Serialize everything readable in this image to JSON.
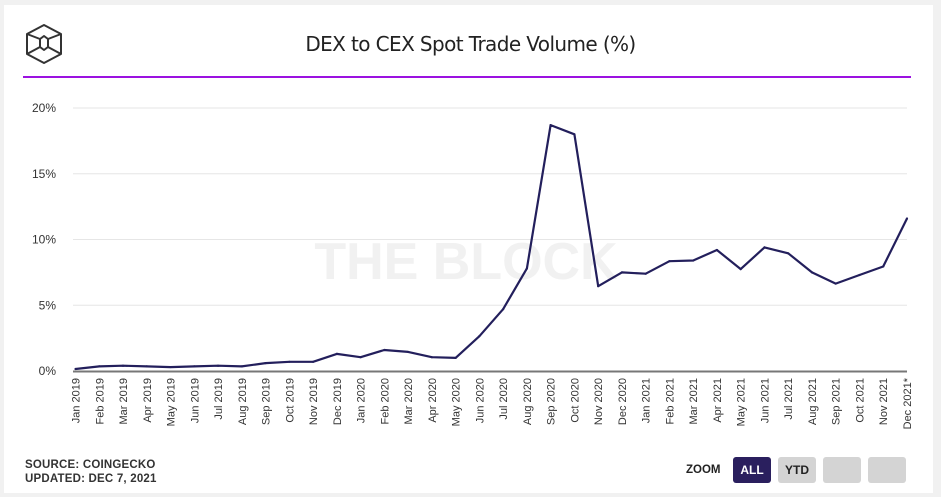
{
  "header": {
    "logo": "the-block-cube-logo",
    "title": "DEX to CEX Spot Trade Volume (%)"
  },
  "watermark": "THE BLOCK",
  "footer": {
    "source": "SOURCE: COINGECKO",
    "updated": "UPDATED: DEC 7, 2021"
  },
  "zoom": {
    "label": "ZOOM",
    "buttons": [
      {
        "label": "ALL",
        "active": true
      },
      {
        "label": "YTD",
        "active": false
      },
      {
        "label": "",
        "active": false
      },
      {
        "label": "",
        "active": false
      }
    ]
  },
  "colors": {
    "line": "#231f5c",
    "accent_rule": "#9b12e0",
    "grid": "#e6e6e6",
    "axis": "#777777",
    "watermark": "#f1f1f1"
  },
  "chart_data": {
    "type": "line",
    "title": "DEX to CEX Spot Trade Volume (%)",
    "xlabel": "",
    "ylabel": "",
    "ylim": [
      0,
      20
    ],
    "yticks": [
      0,
      5,
      10,
      15,
      20
    ],
    "ytick_labels": [
      "0%",
      "5%",
      "10%",
      "15%",
      "20%"
    ],
    "grid": true,
    "legend": "none",
    "categories": [
      "Jan 2019",
      "Feb 2019",
      "Mar 2019",
      "Apr 2019",
      "May 2019",
      "Jun 2019",
      "Jul 2019",
      "Aug 2019",
      "Sep 2019",
      "Oct 2019",
      "Nov 2019",
      "Dec 2019",
      "Jan 2020",
      "Feb 2020",
      "Mar 2020",
      "Apr 2020",
      "May 2020",
      "Jun 2020",
      "Jul 2020",
      "Aug 2020",
      "Sep 2020",
      "Oct 2020",
      "Nov 2020",
      "Dec 2020",
      "Jan 2021",
      "Feb 2021",
      "Mar 2021",
      "Apr 2021",
      "May 2021",
      "Jun 2021",
      "Jul 2021",
      "Aug 2021",
      "Sep 2021",
      "Oct 2021",
      "Nov 2021",
      "Dec 2021*"
    ],
    "series": [
      {
        "name": "DEX to CEX Spot Trade Volume (%)",
        "values": [
          0.15,
          0.35,
          0.4,
          0.35,
          0.3,
          0.35,
          0.4,
          0.35,
          0.6,
          0.7,
          0.7,
          1.3,
          1.05,
          1.6,
          1.45,
          1.05,
          1.0,
          2.65,
          4.7,
          7.8,
          18.7,
          18.0,
          6.45,
          7.5,
          7.4,
          8.35,
          8.4,
          9.2,
          7.75,
          9.4,
          8.95,
          7.5,
          6.65,
          7.3,
          7.95,
          11.6
        ]
      }
    ]
  }
}
